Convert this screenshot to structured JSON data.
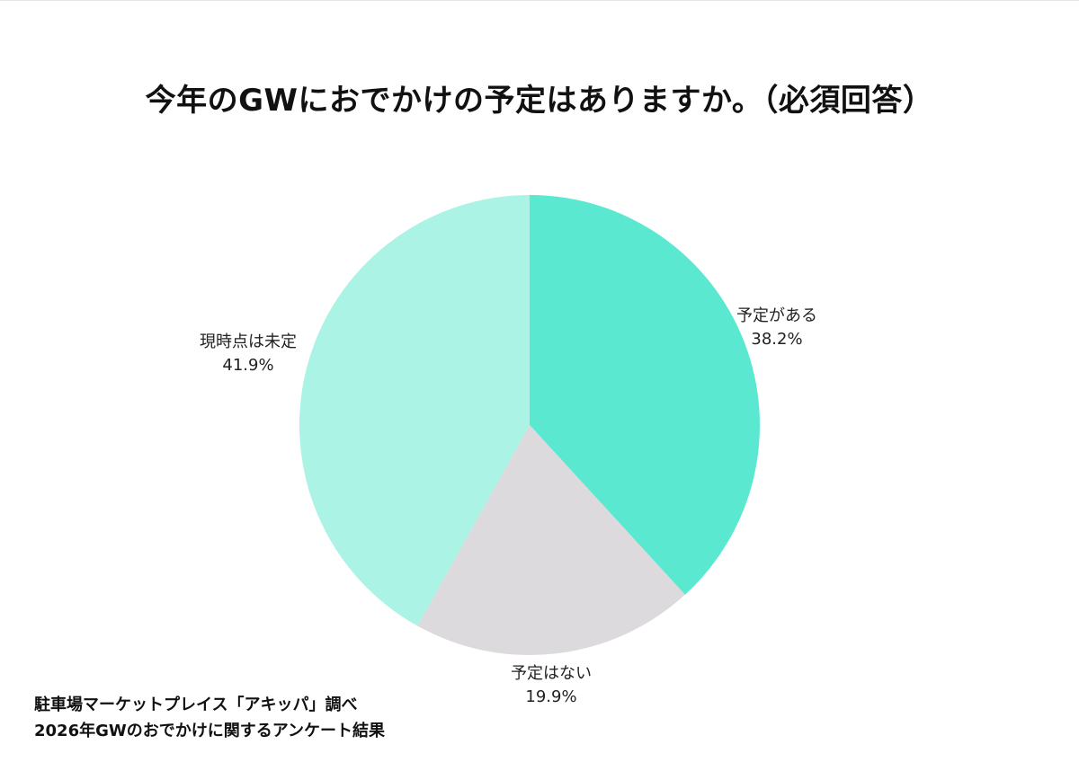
{
  "chart_data": {
    "type": "pie",
    "title": "今年のGWにおでかけの予定はありますか。（必須回答）",
    "slices": [
      {
        "label": "予定がある",
        "value": 38.2,
        "value_label": "38.2%",
        "color": "#5ae8d0"
      },
      {
        "label": "予定はない",
        "value": 19.9,
        "value_label": "19.9%",
        "color": "#dcdadd"
      },
      {
        "label": "現時点は未定",
        "value": 41.9,
        "value_label": "41.9%",
        "color": "#abf3e4"
      }
    ],
    "start_angle": "12 o'clock",
    "direction": "clockwise",
    "legend": "none"
  },
  "footer": {
    "line1": "駐車場マーケットプレイス「アキッパ」調べ",
    "line2": "2026年GWのおでかけに関するアンケート結果"
  }
}
